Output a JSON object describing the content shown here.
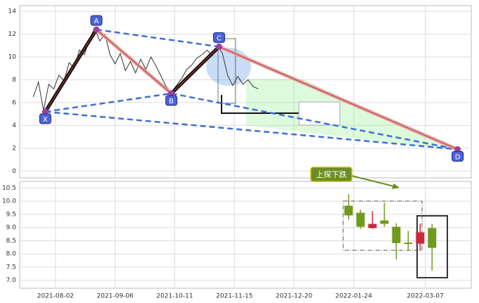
{
  "chart_data": [
    {
      "type": "line",
      "xlim": [
        "2021-07-12",
        "2022-04-03"
      ],
      "xticks": [
        "2021-08-02",
        "2021-09-06",
        "2021-10-11",
        "2021-11-15",
        "2021-12-20",
        "2022-01-24",
        "2022-03-07"
      ],
      "ylim": [
        -0.6,
        14.5
      ],
      "yticks": [
        0,
        2,
        4,
        6,
        8,
        10,
        12,
        14
      ],
      "grid": true,
      "series": [
        {
          "color": "#333333",
          "x": [
            "2021-07-20",
            "2021-07-23",
            "2021-07-26",
            "2021-07-29",
            "2021-08-01",
            "2021-08-04",
            "2021-08-07",
            "2021-08-10",
            "2021-08-13",
            "2021-08-16",
            "2021-08-19",
            "2021-08-22",
            "2021-08-25",
            "2021-08-28",
            "2021-08-31",
            "2021-09-03",
            "2021-09-06",
            "2021-09-09",
            "2021-09-12",
            "2021-09-15",
            "2021-09-18",
            "2021-09-21",
            "2021-09-24",
            "2021-09-27",
            "2021-09-30",
            "2021-10-03",
            "2021-10-06",
            "2021-10-09",
            "2021-10-12",
            "2021-10-15",
            "2021-10-18",
            "2021-10-21",
            "2021-10-24",
            "2021-10-27",
            "2021-10-30",
            "2021-11-02",
            "2021-11-05",
            "2021-11-08",
            "2021-11-11",
            "2021-11-14",
            "2021-11-17",
            "2021-11-20",
            "2021-11-23",
            "2021-11-26",
            "2021-11-29"
          ],
          "values": [
            6.5,
            7.8,
            5.3,
            7.6,
            7.2,
            8.4,
            7.9,
            9.5,
            9.0,
            10.6,
            10.2,
            11.6,
            12.5,
            11.4,
            12.0,
            10.2,
            9.4,
            10.3,
            8.8,
            9.6,
            8.6,
            9.8,
            8.9,
            10.0,
            9.2,
            8.3,
            7.4,
            6.9,
            7.5,
            8.1,
            8.9,
            9.3,
            9.9,
            10.2,
            10.6,
            10.1,
            11.0,
            10.3,
            8.4,
            7.5,
            8.3,
            7.6,
            8.0,
            7.4,
            7.2
          ]
        }
      ],
      "pattern": [
        {
          "label": "X",
          "x": "2021-07-27",
          "value": 5.2
        },
        {
          "label": "A",
          "x": "2021-08-26",
          "value": 12.4
        },
        {
          "label": "B",
          "x": "2021-10-09",
          "value": 6.8
        },
        {
          "label": "C",
          "x": "2021-11-06",
          "value": 10.9
        },
        {
          "label": "D",
          "x": "2022-03-26",
          "value": 1.9
        }
      ]
    },
    {
      "type": "candlestick",
      "xlim": [
        "2021-07-12",
        "2022-04-03"
      ],
      "xticks": [
        "2021-08-02",
        "2021-09-06",
        "2021-10-11",
        "2021-11-15",
        "2021-12-20",
        "2022-01-24",
        "2022-03-07"
      ],
      "ylim": [
        6.7,
        10.75
      ],
      "yticks": [
        {
          "value": 7,
          "label": "7.0"
        },
        7.5,
        {
          "value": 8,
          "label": "8.0"
        },
        8.5,
        {
          "value": 9,
          "label": "9.0"
        },
        9.5,
        {
          "value": 10,
          "label": "10.0"
        },
        10.5
      ],
      "grid": true,
      "x": [
        "2022-01-21",
        "2022-01-28",
        "2022-02-04",
        "2022-02-11",
        "2022-02-18",
        "2022-02-25",
        "2022-03-04",
        "2022-03-11"
      ],
      "open": [
        9.83,
        9.56,
        8.98,
        9.27,
        9.03,
        8.43,
        8.39,
        8.98
      ],
      "high": [
        10.26,
        9.67,
        9.62,
        9.94,
        9.16,
        8.87,
        9.14,
        9.14
      ],
      "low": [
        9.3,
        8.95,
        8.95,
        9.03,
        7.8,
        8.15,
        8.12,
        7.37
      ],
      "close": [
        9.46,
        9.03,
        9.14,
        9.14,
        8.41,
        8.38,
        8.82,
        8.23
      ],
      "up_color": "#c8283c",
      "down_color": "#6f9a1e",
      "annotation": "上探下跌"
    }
  ]
}
